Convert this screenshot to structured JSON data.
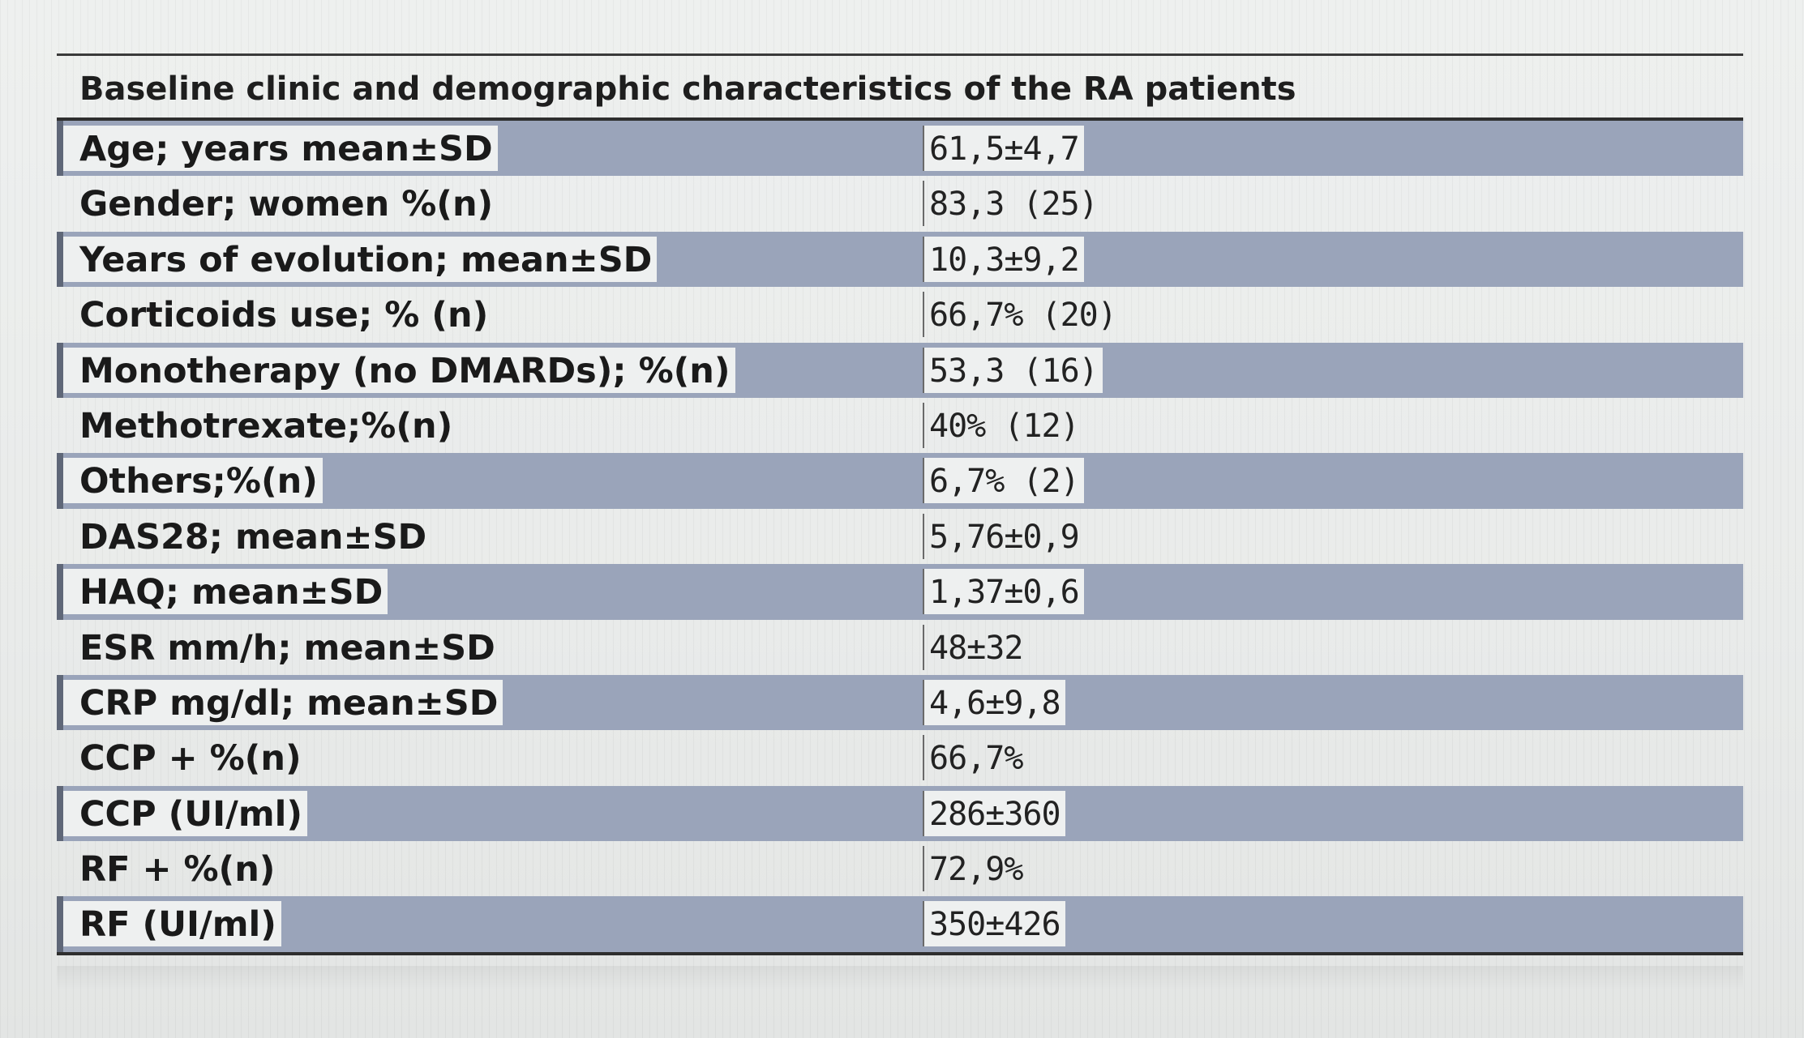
{
  "table": {
    "title": "Baseline clinic and demographic characteristics of the RA patients",
    "rows": [
      {
        "label": "Age; years mean±SD",
        "value": "61,5±4,7"
      },
      {
        "label": "Gender; women %(n)",
        "value": "83,3 (25)"
      },
      {
        "label": "Years of evolution; mean±SD",
        "value": "10,3±9,2"
      },
      {
        "label": "Corticoids use; % (n)",
        "value": "66,7% (20)"
      },
      {
        "label": "Monotherapy (no DMARDs); %(n)",
        "value": "53,3 (16)"
      },
      {
        "label": "Methotrexate;%(n)",
        "value": "40% (12)"
      },
      {
        "label": "Others;%(n)",
        "value": "6,7% (2)"
      },
      {
        "label": "DAS28; mean±SD",
        "value": "5,76±0,9"
      },
      {
        "label": "HAQ; mean±SD",
        "value": "1,37±0,6"
      },
      {
        "label": "ESR mm/h; mean±SD",
        "value": "48±32"
      },
      {
        "label": "CRP mg/dl; mean±SD",
        "value": "4,6±9,8"
      },
      {
        "label": "CCP + %(n)",
        "value": "66,7%"
      },
      {
        "label": "CCP (UI/ml)",
        "value": "286±360"
      },
      {
        "label": "RF + %(n)",
        "value": "72,9%"
      },
      {
        "label": "RF (UI/ml)",
        "value": "350±426"
      }
    ]
  }
}
